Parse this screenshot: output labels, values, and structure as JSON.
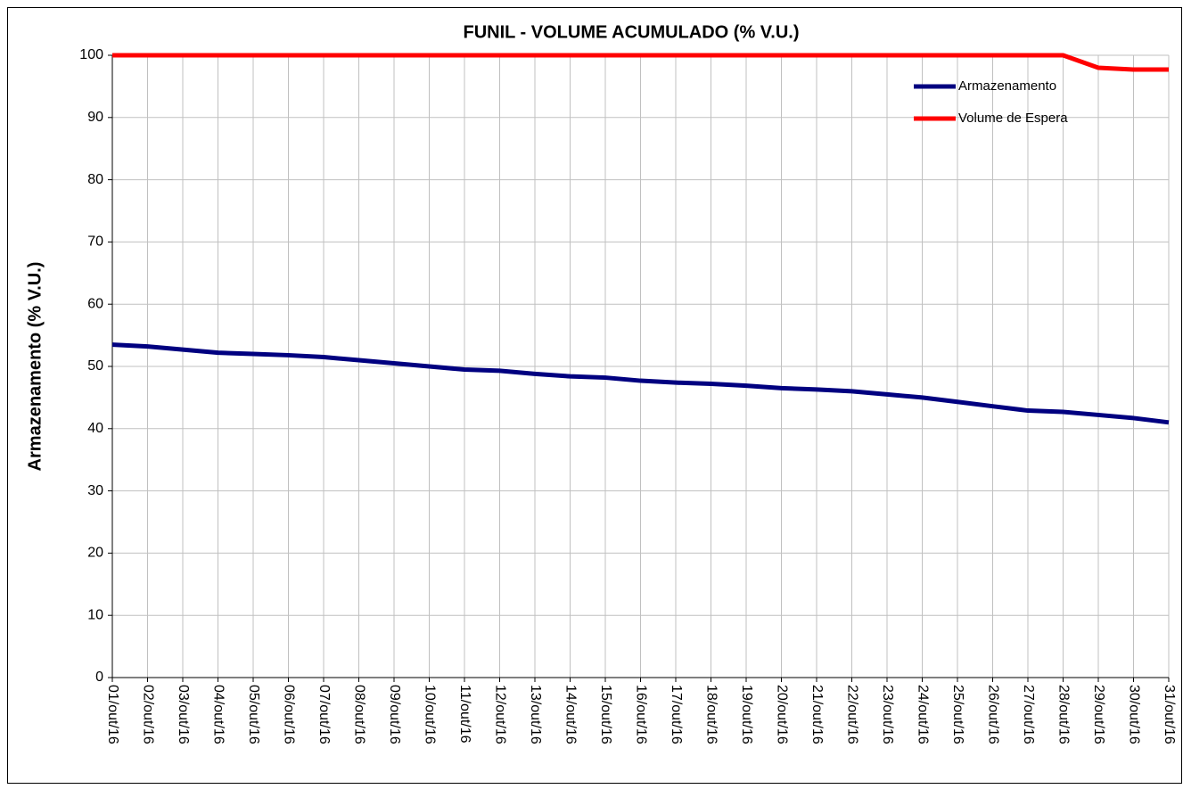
{
  "chart_data": {
    "type": "line",
    "title": "FUNIL - VOLUME ACUMULADO (% V.U.)",
    "y_label": "Armazenamento (% V.U.)",
    "categories": [
      "01/out/16",
      "02/out/16",
      "03/out/16",
      "04/out/16",
      "05/out/16",
      "06/out/16",
      "07/out/16",
      "08/out/16",
      "09/out/16",
      "10/out/16",
      "11/out/16",
      "12/out/16",
      "13/out/16",
      "14/out/16",
      "15/out/16",
      "16/out/16",
      "17/out/16",
      "18/out/16",
      "19/out/16",
      "20/out/16",
      "21/out/16",
      "22/out/16",
      "23/out/16",
      "24/out/16",
      "25/out/16",
      "26/out/16",
      "27/out/16",
      "28/out/16",
      "29/out/16",
      "30/out/16",
      "31/out/16"
    ],
    "series": [
      {
        "name": "Armazenamento",
        "color": "#000080",
        "values": [
          53.5,
          53.2,
          52.7,
          52.2,
          52.0,
          51.8,
          51.5,
          51.0,
          50.5,
          50.0,
          49.5,
          49.3,
          48.8,
          48.4,
          48.2,
          47.7,
          47.4,
          47.2,
          46.9,
          46.5,
          46.3,
          46.0,
          45.5,
          45.0,
          44.3,
          43.6,
          42.9,
          42.7,
          42.2,
          41.7,
          41.0
        ]
      },
      {
        "name": "Volume de Espera",
        "color": "#ff0000",
        "values": [
          100,
          100,
          100,
          100,
          100,
          100,
          100,
          100,
          100,
          100,
          100,
          100,
          100,
          100,
          100,
          100,
          100,
          100,
          100,
          100,
          100,
          100,
          100,
          100,
          100,
          100,
          100,
          100,
          98.0,
          97.7,
          97.7
        ]
      }
    ],
    "ylim": [
      0,
      100
    ],
    "yticks": [
      0,
      10,
      20,
      30,
      40,
      50,
      60,
      70,
      80,
      90,
      100
    ],
    "grid": true,
    "legend": "top-right"
  }
}
